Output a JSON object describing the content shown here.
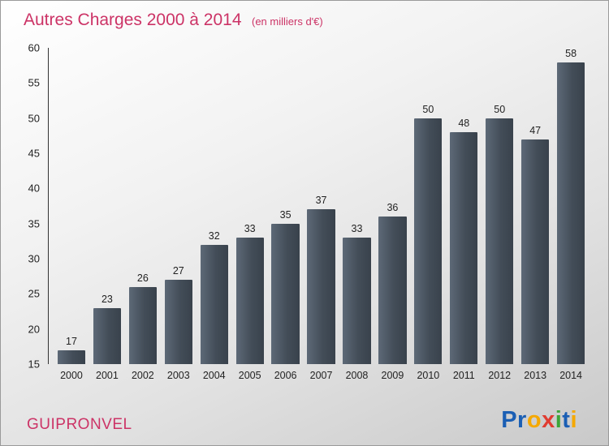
{
  "title": "Autres Charges 2000 à 2014",
  "subtitle": "(en milliers d'€)",
  "footer": {
    "company": "GUIPRONVEL"
  },
  "logo": {
    "text": "Proxiti",
    "letters": [
      {
        "ch": "P",
        "color": "#1b5fb4"
      },
      {
        "ch": "r",
        "color": "#1b5fb4"
      },
      {
        "ch": "o",
        "color": "#f5a800"
      },
      {
        "ch": "x",
        "color": "#e03c31"
      },
      {
        "ch": "i",
        "color": "#3da639"
      },
      {
        "ch": "t",
        "color": "#1b5fb4"
      },
      {
        "ch": "i",
        "color": "#f5a800"
      }
    ]
  },
  "colors": {
    "accent_pink": "#cc3366",
    "bar_light": "#5d6977",
    "bar_dark": "#39424c",
    "text": "#222222"
  },
  "chart_data": {
    "type": "bar",
    "title": "Autres Charges 2000 à 2014",
    "subtitle": "(en milliers d'€)",
    "categories": [
      "2000",
      "2001",
      "2002",
      "2003",
      "2004",
      "2005",
      "2006",
      "2007",
      "2008",
      "2009",
      "2010",
      "2011",
      "2012",
      "2013",
      "2014"
    ],
    "values": [
      17,
      23,
      26,
      27,
      32,
      33,
      35,
      37,
      33,
      36,
      50,
      48,
      50,
      47,
      58
    ],
    "xlabel": "",
    "ylabel": "",
    "ylim": [
      15,
      60
    ],
    "ytick_step": 5,
    "grid": false,
    "legend": "none"
  }
}
